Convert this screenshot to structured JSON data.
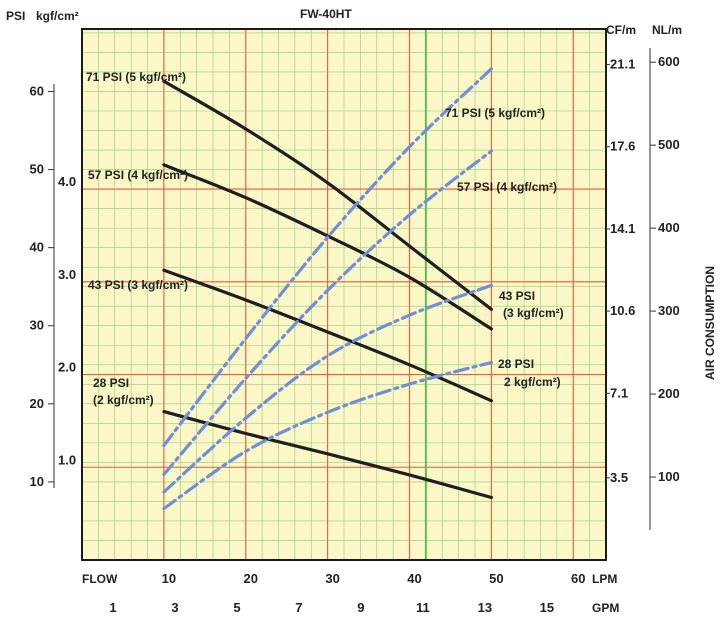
{
  "chart_data": {
    "type": "line",
    "title": "FW-40HT",
    "background_color": "#fbf7c6",
    "left_axes": {
      "psi": {
        "label": "PSI",
        "ticks": [
          "10",
          "20",
          "30",
          "40",
          "50",
          "60"
        ],
        "tick_values": [
          10,
          20,
          30,
          40,
          50,
          60
        ],
        "range": [
          0,
          68
        ]
      },
      "kgf": {
        "label": "kgf/cm²",
        "ticks": [
          "1.0",
          "2.0",
          "3.0",
          "4.0"
        ],
        "tick_values": [
          1,
          2,
          3,
          4
        ]
      }
    },
    "right_axes": {
      "cfm": {
        "label": "CF/m",
        "ticks": [
          "3.5",
          "7.1",
          "10.6",
          "14.1",
          "17.6",
          "21.1"
        ],
        "tick_values": [
          3.5,
          7.1,
          10.6,
          14.1,
          17.6,
          21.1
        ]
      },
      "nlm": {
        "label": "NL/m",
        "ticks": [
          "100",
          "200",
          "300",
          "400",
          "500",
          "600"
        ],
        "tick_values": [
          100,
          200,
          300,
          400,
          500,
          600
        ],
        "range": [
          0,
          640
        ]
      },
      "title": "AIR CONSUMPTION"
    },
    "bottom_axes": {
      "lpm": {
        "label": "LPM",
        "ticks": [
          "10",
          "20",
          "30",
          "40",
          "50",
          "60"
        ],
        "tick_values": [
          10,
          20,
          30,
          40,
          50,
          60
        ],
        "range": [
          0,
          64
        ]
      },
      "gpm": {
        "label": "GPM",
        "ticks": [
          "1",
          "3",
          "5",
          "7",
          "9",
          "11",
          "13",
          "15"
        ],
        "tick_values": [
          1,
          3,
          5,
          7,
          9,
          11,
          13,
          15
        ]
      },
      "flow_label": "FLOW"
    },
    "highlight_x": 42,
    "grid": true,
    "series": [
      {
        "name": "71 PSI (5 kgf/cm²)",
        "kind": "pressure",
        "color": "#1f1f1f",
        "x": [
          10,
          20,
          30,
          40,
          50
        ],
        "y": [
          61.3,
          55.2,
          48.3,
          40.2,
          32.1
        ]
      },
      {
        "name": "57 PSI (4 kgf/cm²)",
        "kind": "pressure",
        "color": "#1f1f1f",
        "x": [
          10,
          20,
          30,
          40,
          50
        ],
        "y": [
          50.6,
          46.4,
          41.5,
          36.2,
          29.6
        ]
      },
      {
        "name": "43 PSI (3 kgf/cm²)",
        "kind": "pressure",
        "color": "#1f1f1f",
        "x": [
          10,
          20,
          30,
          40,
          50
        ],
        "y": [
          37.1,
          33.3,
          29.2,
          25.0,
          20.4
        ]
      },
      {
        "name": "28 PSI (2 kgf/cm²)",
        "kind": "pressure",
        "color": "#1f1f1f",
        "x": [
          10,
          20,
          30,
          40,
          50
        ],
        "y": [
          19.0,
          16.2,
          13.6,
          10.9,
          8.0
        ]
      },
      {
        "name": "71 PSI (5 kgf/cm²)",
        "kind": "air",
        "color": "#6f8fd8",
        "x": [
          10,
          20,
          30,
          40,
          50
        ],
        "y": [
          138,
          267,
          389,
          498,
          592
        ]
      },
      {
        "name": "57 PSI (4 kgf/cm²)",
        "kind": "air",
        "color": "#6f8fd8",
        "x": [
          10,
          20,
          30,
          40,
          50
        ],
        "y": [
          103,
          219,
          325,
          416,
          493
        ]
      },
      {
        "name": "43 PSI (3 kgf/cm²)",
        "kind": "air",
        "color": "#6f8fd8",
        "x": [
          10,
          20,
          30,
          40,
          50
        ],
        "y": [
          82,
          171,
          246,
          295,
          331
        ]
      },
      {
        "name": "28 PSI (2 kgf/cm²)",
        "kind": "air",
        "color": "#6f8fd8",
        "x": [
          10,
          20,
          30,
          40,
          50
        ],
        "y": [
          62,
          131,
          178,
          212,
          238
        ]
      }
    ],
    "annotations": [
      {
        "text": "71 PSI (5 kgf/cm²)"
      },
      {
        "text": "57 PSI (4 kgf/cm²)"
      },
      {
        "text": "43 PSI (3 kgf/cm²)"
      },
      {
        "text": "28 PSI"
      },
      {
        "text": "(2 kgf/cm²)"
      },
      {
        "text": "71 PSI (5 kgf/cm²)"
      },
      {
        "text": "57 PSI (4 kgf/cm²)"
      },
      {
        "text": "43 PSI"
      },
      {
        "text": "(3 kgf/cm²)"
      },
      {
        "text": "28 PSI"
      },
      {
        "text": "2 kgf/cm²)"
      }
    ]
  }
}
